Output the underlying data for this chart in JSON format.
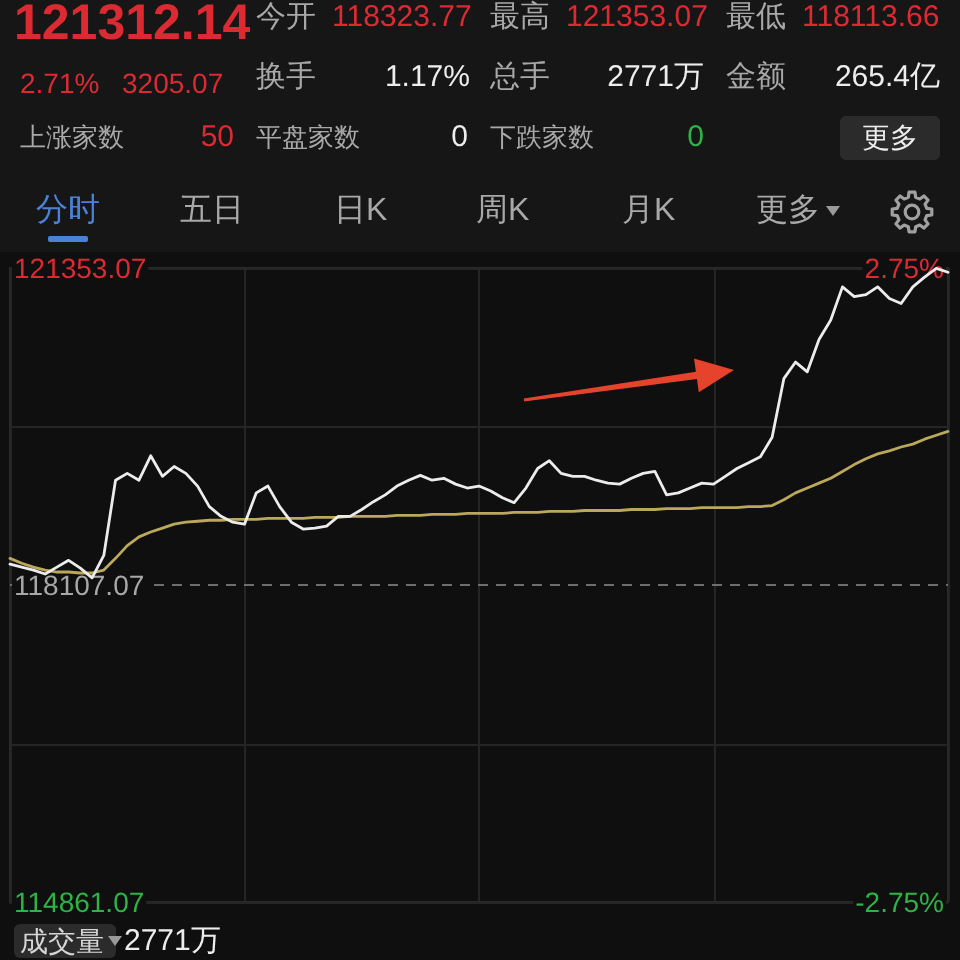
{
  "chart_data": [
    {
      "type": "other",
      "annotations": [
        "121312.14",
        "今开",
        "118323.77",
        "最高",
        "121353.07",
        "最低",
        "118113.66",
        "2.71%",
        "3205.07",
        "换手",
        "1.17%",
        "总手",
        "2771万",
        "金额",
        "265.4亿",
        "上涨家数",
        "50",
        "平盘家数",
        "0",
        "下跌家数",
        "0",
        "更多",
        "分时",
        "五日",
        "日K",
        "周K",
        "月K",
        "更多"
      ]
    },
    {
      "type": "line",
      "categories": [
        null,
        null,
        null,
        null,
        null,
        null,
        null,
        null,
        null,
        null,
        null,
        null,
        null,
        null,
        null,
        null,
        null,
        null,
        null,
        null,
        null,
        null,
        null,
        null,
        null,
        null,
        null,
        null,
        null,
        null,
        null,
        null,
        null,
        null,
        null,
        null,
        null,
        null,
        null,
        null,
        null,
        null,
        null,
        null,
        null,
        null,
        null,
        null,
        null,
        null,
        null,
        null,
        null,
        null,
        null,
        null,
        null,
        null,
        null,
        null,
        null,
        null,
        null,
        null,
        null,
        null,
        null,
        null,
        null,
        null,
        null,
        null,
        null,
        null,
        null,
        null,
        null,
        null,
        null,
        null,
        null
      ],
      "series": [
        {
          "color": "#ececec",
          "values": [
            118320,
            118290,
            118260,
            118220,
            118290,
            118360,
            118280,
            118180,
            118410,
            119180,
            119250,
            119180,
            119430,
            119220,
            119320,
            119250,
            119120,
            118910,
            118810,
            118750,
            118730,
            119050,
            119120,
            118910,
            118750,
            118680,
            118690,
            118710,
            118810,
            118810,
            118880,
            118960,
            119030,
            119120,
            119180,
            119230,
            119180,
            119200,
            119140,
            119100,
            119120,
            119070,
            119000,
            118950,
            119100,
            119300,
            119380,
            119250,
            119220,
            119220,
            119180,
            119150,
            119140,
            119200,
            119250,
            119270,
            119030,
            119050,
            119100,
            119150,
            119140,
            119220,
            119300,
            119360,
            119420,
            119620,
            120220,
            120390,
            120290,
            120620,
            120820,
            121160,
            121060,
            121080,
            121160,
            121040,
            120990,
            121160,
            121260,
            121350,
            121310
          ]
        },
        {
          "color": "#bba85c",
          "values": [
            118380,
            118330,
            118290,
            118260,
            118240,
            118240,
            118230,
            118230,
            118260,
            118380,
            118510,
            118600,
            118650,
            118690,
            118730,
            118750,
            118760,
            118770,
            118770,
            118780,
            118780,
            118780,
            118790,
            118790,
            118790,
            118790,
            118800,
            118800,
            118800,
            118810,
            118810,
            118810,
            118810,
            118820,
            118820,
            118820,
            118830,
            118830,
            118830,
            118840,
            118840,
            118840,
            118840,
            118850,
            118850,
            118850,
            118860,
            118860,
            118860,
            118870,
            118870,
            118870,
            118870,
            118880,
            118880,
            118880,
            118890,
            118890,
            118890,
            118900,
            118900,
            118900,
            118900,
            118910,
            118910,
            118920,
            118980,
            119050,
            119100,
            119150,
            119200,
            119270,
            119340,
            119400,
            119450,
            119480,
            119520,
            119550,
            119600,
            119640,
            119680
          ]
        }
      ],
      "ylim": [
        114861.07,
        121353.07
      ],
      "yticks": [
        114861.07,
        {
          "value": 116484.07,
          "label": null
        },
        118107.07,
        {
          "value": 119730.07,
          "label": null
        },
        121353.07
      ],
      "y2lim": [
        -2.75,
        2.75
      ],
      "y2ticks": [
        {
          "value": -2.75,
          "label": "-2.75%"
        },
        {
          "value": 2.75,
          "label": "2.75%"
        }
      ],
      "grid": true,
      "ref_lines": [
        {
          "axis": "y",
          "value": 118107.07,
          "color": "#6e6e6e",
          "line_style": "dashed"
        }
      ],
      "annotations": [
        "成交量",
        "2771万"
      ]
    }
  ]
}
